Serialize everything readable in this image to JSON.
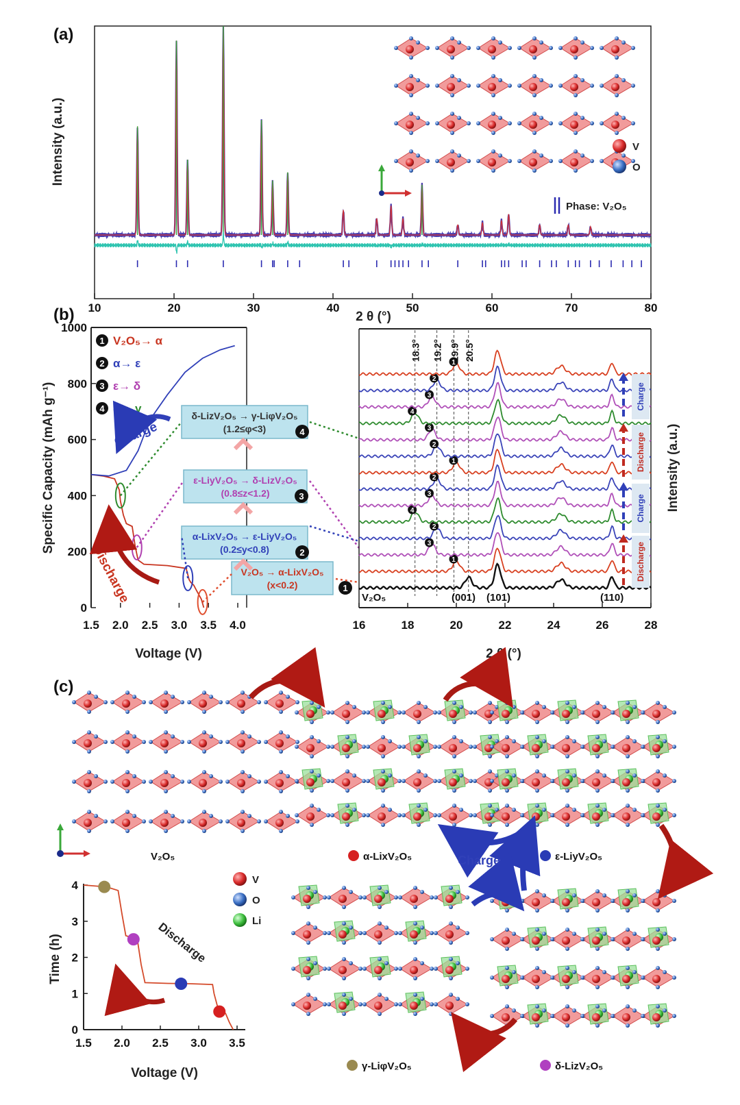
{
  "colors": {
    "vanadium": "#d92b2b",
    "oxygen": "#3a6fc4",
    "lithium": "#3fbf3f",
    "obs": "#4a3fb0",
    "calc": "#d43030",
    "diff": "#2fc4b0",
    "bragg": "#2a2ab0",
    "charge": "#3040b8",
    "discharge": "#c02a20",
    "green_trace": "#2e8b2e",
    "magenta_trace": "#b040b0",
    "alpha_marker": "#d62020",
    "epsilon_marker": "#2a3bb5",
    "delta_marker": "#b040c0",
    "gamma_marker": "#9a8a50"
  },
  "panel_a": {
    "label": "(a)",
    "ylabel": "Intensity (a.u.)",
    "xlabel": "2 θ (°)",
    "legend_v": "V",
    "legend_o": "O",
    "phase": "Phase: V₂O₅"
  },
  "panel_b": {
    "label": "(b)",
    "left_xlabel": "Voltage (V)",
    "left_ylabel": "Specific Capacity (mAh g⁻¹)",
    "right_xlabel": "2 θ (°)",
    "right_ylabel": "Intensity (a.u.)",
    "charge_label": "Charge",
    "discharge_label": "Discharge",
    "legend": [
      {
        "num": "1",
        "text": "V₂O₅→ α"
      },
      {
        "num": "2",
        "text": "α→ ε"
      },
      {
        "num": "3",
        "text": "ε→ δ"
      },
      {
        "num": "4",
        "text": "δ→ γ"
      }
    ],
    "boxes": [
      {
        "line1": "δ-LizV₂O₅ → γ-LiφV₂O₅",
        "line2": "(1.2≤φ<3)",
        "num": "4"
      },
      {
        "line1": "ε-LiyV₂O₅ → δ-LizV₂O₅",
        "line2": "(0.8≤z<1.2)",
        "num": "3"
      },
      {
        "line1": "α-LixV₂O₅ → ε-LiyV₂O₅",
        "line2": "(0.2≤y<0.8)",
        "num": "2"
      },
      {
        "line1": "V₂O₅ → α-LixV₂O₅",
        "line2": "(x<0.2)",
        "num": "1"
      }
    ],
    "guide_labels": [
      "18.3°",
      "19.2°",
      "19.9°",
      "20.5°"
    ],
    "v2o5_label": "V₂O₅",
    "hkl": [
      "(001)",
      "(101)",
      "(110)"
    ],
    "side_tags": [
      "Charge",
      "Discharge",
      "Charge",
      "Discharge"
    ]
  },
  "panel_c": {
    "label": "(c)",
    "names": {
      "v2o5": "V₂O₅",
      "alpha": "α-LixV₂O₅",
      "epsilon": "ε-LiyV₂O₅",
      "gamma": "γ-LiφV₂O₅",
      "delta": "δ-LizV₂O₅"
    },
    "charge_label": "Charge",
    "legend": [
      "V",
      "O",
      "Li"
    ],
    "inset": {
      "xlabel": "Voltage (V)",
      "ylabel": "Time (h)",
      "discharge_label": "Discharge"
    }
  },
  "chart_data": [
    {
      "type": "line",
      "title": "",
      "xlabel": "2 θ (°)",
      "ylabel": "Intensity (a.u.)",
      "xlim": [
        10,
        80
      ],
      "xticks": [
        10,
        20,
        30,
        40,
        50,
        60,
        70,
        80
      ],
      "peaks_2theta": [
        15.4,
        20.3,
        21.7,
        26.2,
        31.0,
        32.4,
        34.3,
        41.3,
        45.5,
        47.3,
        48.8,
        51.2,
        55.7,
        58.8,
        61.2,
        62.1,
        66.0,
        69.6,
        72.4
      ],
      "peak_rel_intensity": [
        0.52,
        0.93,
        0.36,
        1.0,
        0.55,
        0.26,
        0.3,
        0.12,
        0.08,
        0.14,
        0.08,
        0.24,
        0.05,
        0.06,
        0.07,
        0.1,
        0.05,
        0.05,
        0.04
      ],
      "series": [
        {
          "name": "observed"
        },
        {
          "name": "calculated"
        },
        {
          "name": "difference"
        },
        {
          "name": "Phase: V₂O₅"
        }
      ]
    },
    {
      "type": "line",
      "title": "",
      "xlabel": "Voltage (V)",
      "ylabel": "Specific Capacity (mAh g⁻¹)",
      "xlim": [
        1.5,
        4.0
      ],
      "ylim": [
        0,
        1000
      ],
      "xticks": [
        1.5,
        2.0,
        2.5,
        3.0,
        3.5,
        4.0
      ],
      "yticks": [
        0,
        200,
        400,
        600,
        800,
        1000
      ],
      "series": [
        {
          "name": "Discharge",
          "x": [
            3.42,
            3.38,
            3.3,
            3.25,
            3.2,
            3.17,
            3.12,
            2.8,
            2.4,
            2.3,
            2.25,
            2.2,
            2.1,
            2.05,
            2.0,
            1.98,
            1.9,
            1.7,
            1.5
          ],
          "y": [
            0,
            30,
            60,
            80,
            90,
            100,
            140,
            150,
            155,
            170,
            220,
            290,
            300,
            330,
            380,
            420,
            460,
            470,
            475
          ]
        },
        {
          "name": "Charge",
          "x": [
            1.5,
            1.8,
            2.1,
            2.3,
            2.5,
            2.8,
            3.1,
            3.4,
            3.7,
            3.95
          ],
          "y": [
            475,
            470,
            490,
            560,
            670,
            760,
            840,
            890,
            920,
            935
          ]
        }
      ],
      "markers": [
        {
          "num": "1",
          "x": 3.4,
          "y": 20
        },
        {
          "num": "2",
          "x": 3.15,
          "y": 105
        },
        {
          "num": "3",
          "x": 2.28,
          "y": 215
        },
        {
          "num": "4",
          "x": 2.0,
          "y": 400
        }
      ]
    },
    {
      "type": "line",
      "title": "",
      "xlabel": "2 θ (°)",
      "ylabel": "Intensity (a.u.)",
      "xlim": [
        16,
        28
      ],
      "xticks": [
        16,
        18,
        20,
        22,
        24,
        26,
        28
      ],
      "guide_lines": [
        18.3,
        19.2,
        19.9,
        20.5
      ],
      "stack": [
        "V₂O₅",
        "1",
        "3",
        "2",
        "4",
        "3",
        "2",
        "1",
        "2",
        "3",
        "4",
        "3",
        "2",
        "1"
      ]
    },
    {
      "type": "line",
      "title": "",
      "xlabel": "Voltage (V)",
      "ylabel": "Time (h)",
      "xlim": [
        1.5,
        3.5
      ],
      "ylim": [
        0,
        4
      ],
      "xticks": [
        1.5,
        2.0,
        2.5,
        3.0,
        3.5
      ],
      "yticks": [
        0,
        1,
        2,
        3,
        4
      ],
      "series": [
        {
          "x": [
            3.45,
            3.4,
            3.35,
            3.25,
            3.2,
            3.18,
            2.9,
            2.6,
            2.3,
            2.25,
            2.2,
            2.05,
            2.0,
            1.95,
            1.8,
            1.5
          ],
          "y": [
            0,
            0.2,
            0.45,
            0.6,
            1.0,
            1.25,
            1.27,
            1.28,
            1.3,
            1.8,
            2.5,
            2.6,
            3.2,
            3.85,
            3.95,
            4.0
          ]
        }
      ],
      "points": [
        {
          "phase": "γ",
          "x": 1.77,
          "y": 3.95
        },
        {
          "phase": "δ",
          "x": 2.15,
          "y": 2.5
        },
        {
          "phase": "ε",
          "x": 2.77,
          "y": 1.27
        },
        {
          "phase": "α",
          "x": 3.27,
          "y": 0.5
        }
      ]
    }
  ]
}
